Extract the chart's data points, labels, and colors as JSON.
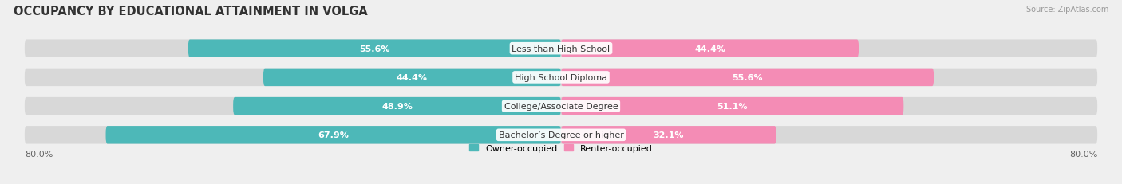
{
  "title": "OCCUPANCY BY EDUCATIONAL ATTAINMENT IN VOLGA",
  "source": "Source: ZipAtlas.com",
  "categories": [
    "Less than High School",
    "High School Diploma",
    "College/Associate Degree",
    "Bachelor’s Degree or higher"
  ],
  "owner_values": [
    55.6,
    44.4,
    48.9,
    67.9
  ],
  "renter_values": [
    44.4,
    55.6,
    51.1,
    32.1
  ],
  "owner_color": "#4db8b8",
  "renter_color": "#f48cb5",
  "background_color": "#efefef",
  "bar_bg_color": "#d8d8d8",
  "title_fontsize": 10.5,
  "label_fontsize": 8,
  "pct_fontsize": 8,
  "bar_height": 0.62,
  "legend_owner": "Owner-occupied",
  "legend_renter": "Renter-occupied"
}
